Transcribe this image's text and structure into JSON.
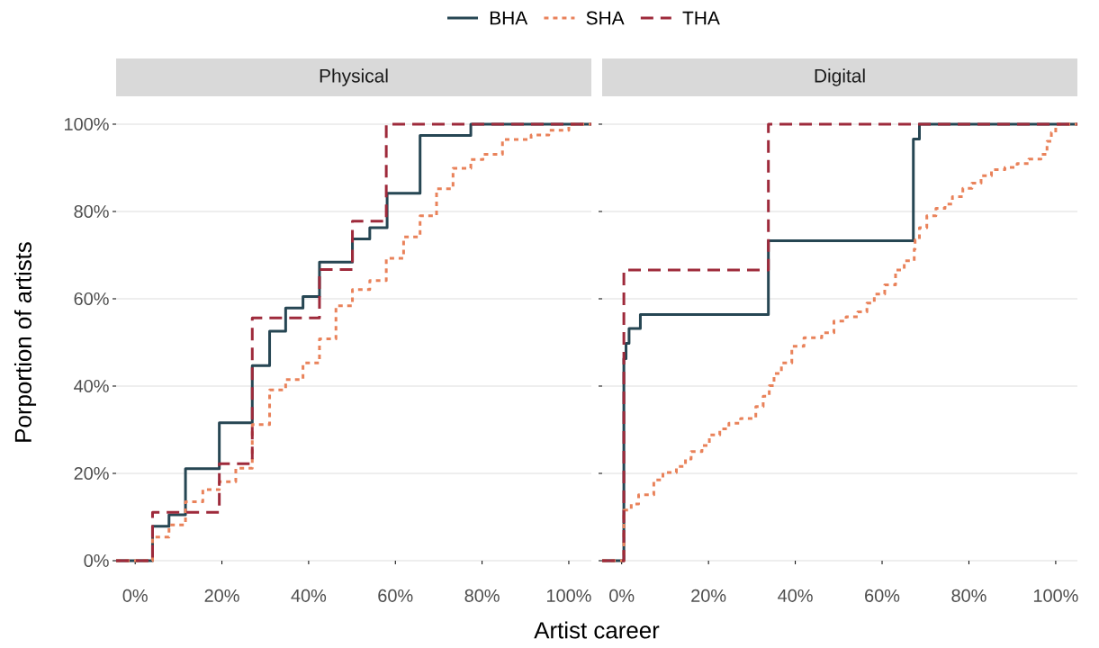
{
  "chart_data": [
    {
      "type": "step",
      "title": "Physical",
      "xlabel": "Artist career",
      "ylabel": "Porportion of artists",
      "legend": "top",
      "grid": "y",
      "xlim": [
        -4.4,
        105.2
      ],
      "ylim": [
        0,
        100
      ],
      "xticks": [
        {
          "value": 0,
          "label": "0%"
        },
        {
          "value": 20,
          "label": "20%"
        },
        {
          "value": 40,
          "label": "40%"
        },
        {
          "value": 60,
          "label": "60%"
        },
        {
          "value": 80,
          "label": "80%"
        },
        {
          "value": 100,
          "label": "100%"
        }
      ],
      "yticks": [
        {
          "value": 0,
          "label": "0%"
        },
        {
          "value": 20,
          "label": "20%"
        },
        {
          "value": 40,
          "label": "40%"
        },
        {
          "value": 60,
          "label": "60%"
        },
        {
          "value": 80,
          "label": "80%"
        },
        {
          "value": 100,
          "label": "100%"
        }
      ],
      "series": [
        {
          "name": "BHA",
          "color": "#264653",
          "line_style": "solid",
          "x": [
            -4.4,
            4.0,
            7.8,
            11.6,
            19.4,
            27.0,
            31.0,
            34.7,
            38.7,
            42.5,
            50.1,
            54.1,
            58.1,
            65.7,
            77.4,
            105.2
          ],
          "values": [
            0,
            7.9,
            10.5,
            21.1,
            31.6,
            44.7,
            52.6,
            57.9,
            60.5,
            68.4,
            73.7,
            76.3,
            84.2,
            97.4,
            100,
            100
          ]
        },
        {
          "name": "SHA",
          "color": "#e9825a",
          "line_style": "dotted",
          "x": [
            -4.4,
            4.0,
            7.8,
            11.6,
            15.6,
            19.4,
            23.2,
            27.0,
            31.0,
            34.7,
            38.7,
            42.5,
            46.3,
            50.1,
            54.1,
            57.9,
            61.9,
            65.7,
            69.5,
            73.3,
            77.4,
            80.2,
            84.7,
            91.3,
            95.4,
            100,
            105.2
          ],
          "values": [
            0,
            5.4,
            8.2,
            13.5,
            16.3,
            18.1,
            21.2,
            31.2,
            39.1,
            41.5,
            45.3,
            50.8,
            58.4,
            62.1,
            64.2,
            69.3,
            74.2,
            79.0,
            85.2,
            89.9,
            91.9,
            93.1,
            96.5,
            97.5,
            98.6,
            100,
            100
          ]
        },
        {
          "name": "THA",
          "color": "#9e2a3b",
          "line_style": "dashed",
          "x": [
            -4.4,
            4.0,
            19.4,
            27.0,
            42.5,
            50.1,
            57.9,
            105.2
          ],
          "values": [
            0,
            11.1,
            22.2,
            55.6,
            66.7,
            77.8,
            100,
            100
          ]
        }
      ]
    },
    {
      "type": "step",
      "title": "Digital",
      "grid": "y",
      "tick_labels": "x",
      "xlim": [
        -4.5,
        105.0
      ],
      "ylim": [
        0,
        100
      ],
      "xticks": [
        {
          "value": 0,
          "label": "0%"
        },
        {
          "value": 20,
          "label": "20%"
        },
        {
          "value": 40,
          "label": "40%"
        },
        {
          "value": 60,
          "label": "60%"
        },
        {
          "value": 80,
          "label": "80%"
        },
        {
          "value": 100,
          "label": "100%"
        }
      ],
      "yticks": [
        {
          "value": 0,
          "label": null
        },
        {
          "value": 20,
          "label": null
        },
        {
          "value": 40,
          "label": null
        },
        {
          "value": 60,
          "label": null
        },
        {
          "value": 80,
          "label": null
        },
        {
          "value": 100,
          "label": null
        }
      ],
      "series": [
        {
          "color": "#264653",
          "line_style": "solid",
          "x": [
            -4.5,
            0.5,
            1.0,
            1.7,
            4.3,
            33.8,
            67.2,
            68.6,
            105.0
          ],
          "values": [
            0,
            46.3,
            49.8,
            53.2,
            56.4,
            73.3,
            96.6,
            100,
            100
          ]
        },
        {
          "color": "#e9825a",
          "line_style": "dotted",
          "x": [
            -4.5,
            0.5,
            2.2,
            3.9,
            7.4,
            9.5,
            12.6,
            14.7,
            16.0,
            18.5,
            20.2,
            22.6,
            24.7,
            27.4,
            30.9,
            32.6,
            34.0,
            35.1,
            36.8,
            39.2,
            42.0,
            46.1,
            48.9,
            51.7,
            54.4,
            56.5,
            58.2,
            60.6,
            63.1,
            65.1,
            67.4,
            67.6,
            68.6,
            70.3,
            72.4,
            74.5,
            76.2,
            78.6,
            80.7,
            82.8,
            85.2,
            88.3,
            91.1,
            93.8,
            96.6,
            98.0,
            99.0,
            100,
            105.0
          ],
          "values": [
            0,
            11.6,
            13.0,
            15.1,
            18.5,
            20.2,
            21.6,
            23.3,
            25.0,
            26.4,
            28.8,
            30.2,
            31.5,
            32.6,
            35.3,
            37.7,
            40.1,
            42.9,
            45.3,
            49.1,
            51.1,
            52.2,
            54.9,
            55.9,
            57.0,
            59.0,
            61.1,
            63.2,
            66.6,
            68.7,
            71.4,
            73.5,
            76.3,
            79.0,
            80.7,
            81.7,
            83.4,
            85.3,
            86.5,
            88.2,
            89.6,
            90.1,
            91.0,
            92.0,
            93.1,
            96.1,
            98.1,
            100,
            100
          ]
        },
        {
          "color": "#9e2a3b",
          "line_style": "dashed",
          "x": [
            -4.5,
            0.5,
            33.8,
            105.0
          ],
          "values": [
            0,
            66.6,
            100,
            100
          ]
        }
      ]
    }
  ]
}
